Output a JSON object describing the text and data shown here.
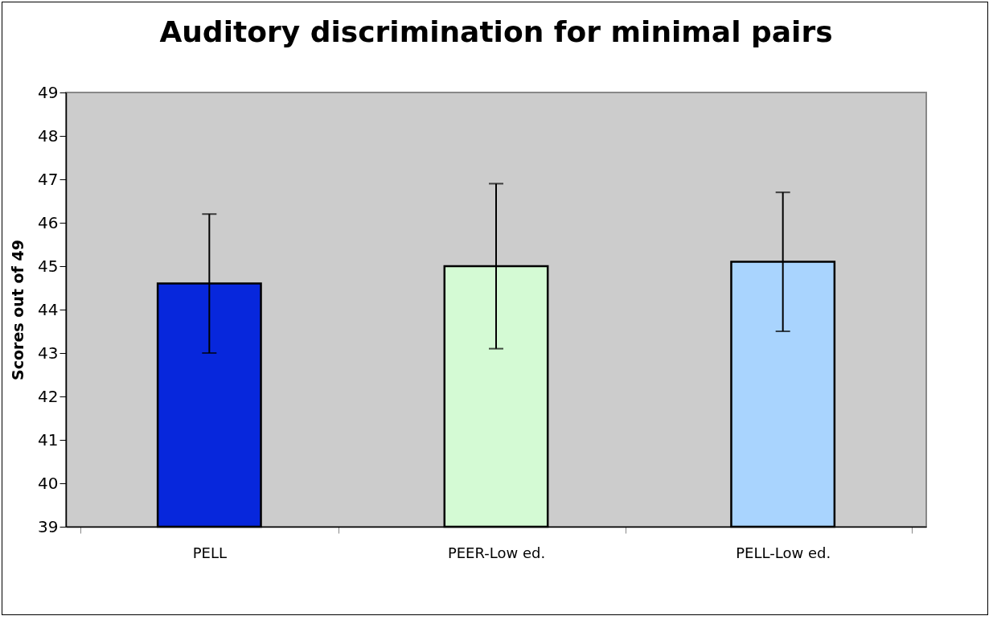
{
  "chart_data": {
    "type": "bar",
    "title": "Auditory discrimination for minimal pairs",
    "ylabel": "Scores out of 49",
    "categories": [
      "PELL",
      "PEER-Low ed.",
      "PELL-Low ed."
    ],
    "values": [
      44.6,
      45.0,
      45.1
    ],
    "errors": [
      1.6,
      1.9,
      1.6
    ],
    "colors": [
      "#0727dc",
      "#d4fad4",
      "#a9d4fe"
    ],
    "ylim": [
      39,
      49
    ],
    "yticks": [
      39,
      40,
      41,
      42,
      43,
      44,
      45,
      46,
      47,
      48,
      49
    ],
    "grid": false
  }
}
